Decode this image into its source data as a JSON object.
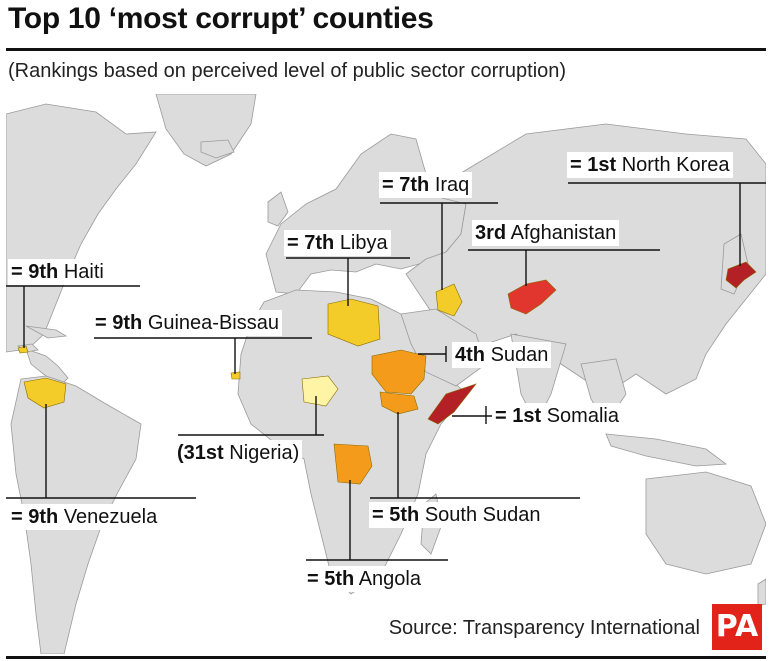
{
  "title": "Top 10 ‘most corrupt’ counties",
  "subtitle": "(Rankings based on perceived level of public sector corruption)",
  "source": "Source: Transparency International",
  "logo": "PA",
  "colors": {
    "ocean": "#ffffff",
    "land": "#dcdcdc",
    "border": "#9a9a9a",
    "rank_1": "#b32025",
    "rank_3": "#e0362e",
    "rank_4_5": "#f59b1c",
    "rank_7_9": "#f4cc2a",
    "rank_31": "#fff3a6"
  },
  "countries": [
    {
      "rank": "= 1st",
      "name": "North Korea",
      "color": "#b32025"
    },
    {
      "rank": "= 1st",
      "name": "Somalia",
      "color": "#b32025"
    },
    {
      "rank": "3rd",
      "name": "Afghanistan",
      "color": "#e0362e"
    },
    {
      "rank": "4th",
      "name": "Sudan",
      "color": "#f59b1c"
    },
    {
      "rank": "= 5th",
      "name": "South Sudan",
      "color": "#f59b1c"
    },
    {
      "rank": "= 5th",
      "name": "Angola",
      "color": "#f59b1c"
    },
    {
      "rank": "= 7th",
      "name": "Iraq",
      "color": "#f4cc2a"
    },
    {
      "rank": "= 7th",
      "name": "Libya",
      "color": "#f4cc2a"
    },
    {
      "rank": "= 9th",
      "name": "Haiti",
      "color": "#f4cc2a"
    },
    {
      "rank": "= 9th",
      "name": "Guinea-Bissau",
      "color": "#f4cc2a"
    },
    {
      "rank": "= 9th",
      "name": "Venezuela",
      "color": "#f4cc2a"
    },
    {
      "rank": "(31st",
      "name": "Nigeria)",
      "color": "#fff3a6"
    }
  ]
}
